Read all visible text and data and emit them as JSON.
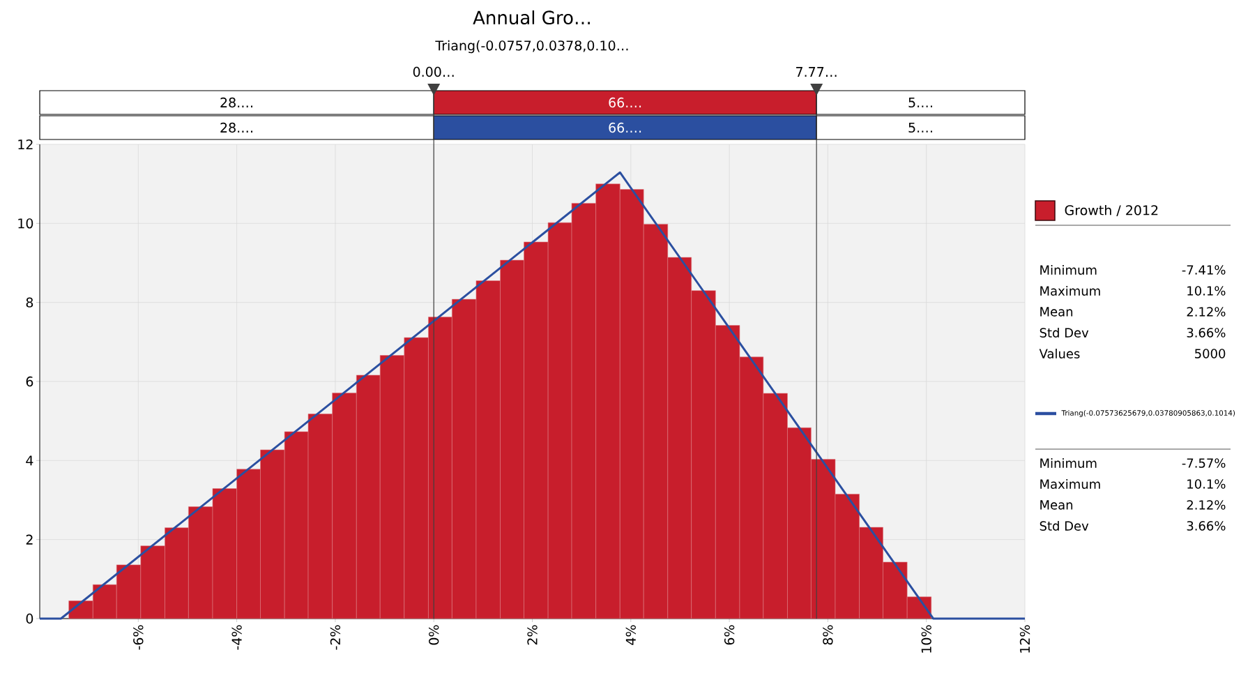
{
  "chart_data": {
    "type": "histogram",
    "title": "Annual Gro…",
    "subtitle": "Triang(-0.0757,0.0378,0.10…",
    "bins": [
      -7.41,
      -6.92,
      -6.44,
      -5.95,
      -5.46,
      -4.98,
      -4.49,
      -4.0,
      -3.52,
      -3.03,
      -2.55,
      -2.06,
      -1.57,
      -1.09,
      -0.6,
      -0.11,
      0.37,
      0.86,
      1.35,
      1.83,
      2.32,
      2.8,
      3.29,
      3.78,
      4.26,
      4.75,
      5.23,
      5.72,
      6.21,
      6.69,
      7.18,
      7.66,
      8.15,
      8.64,
      9.12,
      9.61,
      10.1
    ],
    "series": [
      {
        "name": "Growth / 2012",
        "type": "histogram",
        "color": "#c81e2c",
        "values": [
          0.45,
          0.86,
          1.36,
          1.84,
          2.3,
          2.83,
          3.29,
          3.78,
          4.27,
          4.73,
          5.18,
          5.71,
          6.16,
          6.66,
          7.11,
          7.63,
          8.08,
          8.55,
          9.07,
          9.53,
          10.02,
          10.51,
          11.0,
          10.86,
          9.98,
          9.14,
          8.3,
          7.42,
          6.62,
          5.7,
          4.83,
          4.03,
          3.15,
          2.31,
          1.43,
          0.55
        ]
      },
      {
        "name": "Triang(-0.07573625679,0.03780905863,0.1014)",
        "type": "line",
        "color": "#2b4fa0",
        "x": [
          -8,
          -7.57,
          3.78,
          10.14,
          12
        ],
        "values": [
          0,
          0,
          11.29,
          0,
          0
        ]
      }
    ],
    "xlim": [
      -8,
      12
    ],
    "ylim": [
      0,
      12
    ],
    "xticks": [
      {
        "value": -6,
        "label": "-6%"
      },
      {
        "value": -4,
        "label": "-4%"
      },
      {
        "value": -2,
        "label": "-2%"
      },
      {
        "value": 0,
        "label": "0%"
      },
      {
        "value": 2,
        "label": "2%"
      },
      {
        "value": 4,
        "label": "4%"
      },
      {
        "value": 6,
        "label": "6%"
      },
      {
        "value": 8,
        "label": "8%"
      },
      {
        "value": 10,
        "label": "10%"
      },
      {
        "value": 12,
        "label": "12%"
      }
    ],
    "yticks": [
      0,
      2,
      4,
      6,
      8,
      10,
      12
    ],
    "ref_lines": [
      {
        "axis": "x",
        "value": 0,
        "label": "0.00…",
        "color": "#404040"
      },
      {
        "axis": "x",
        "value": 7.77,
        "label": "7.77…",
        "color": "#404040"
      }
    ],
    "annotations": [
      "28.…",
      "66.…",
      "5.…",
      "28.…",
      "66.…",
      "5.…",
      "Minimum",
      "-7.41%",
      "Maximum",
      "10.1%",
      "Mean",
      "2.12%",
      "Std Dev",
      "3.66%",
      "Values",
      "5000",
      "Minimum",
      "-7.57%",
      "Maximum",
      "10.1%",
      "Mean",
      "2.12%",
      "Std Dev",
      "3.66%"
    ],
    "grid": true,
    "legend": "right"
  }
}
